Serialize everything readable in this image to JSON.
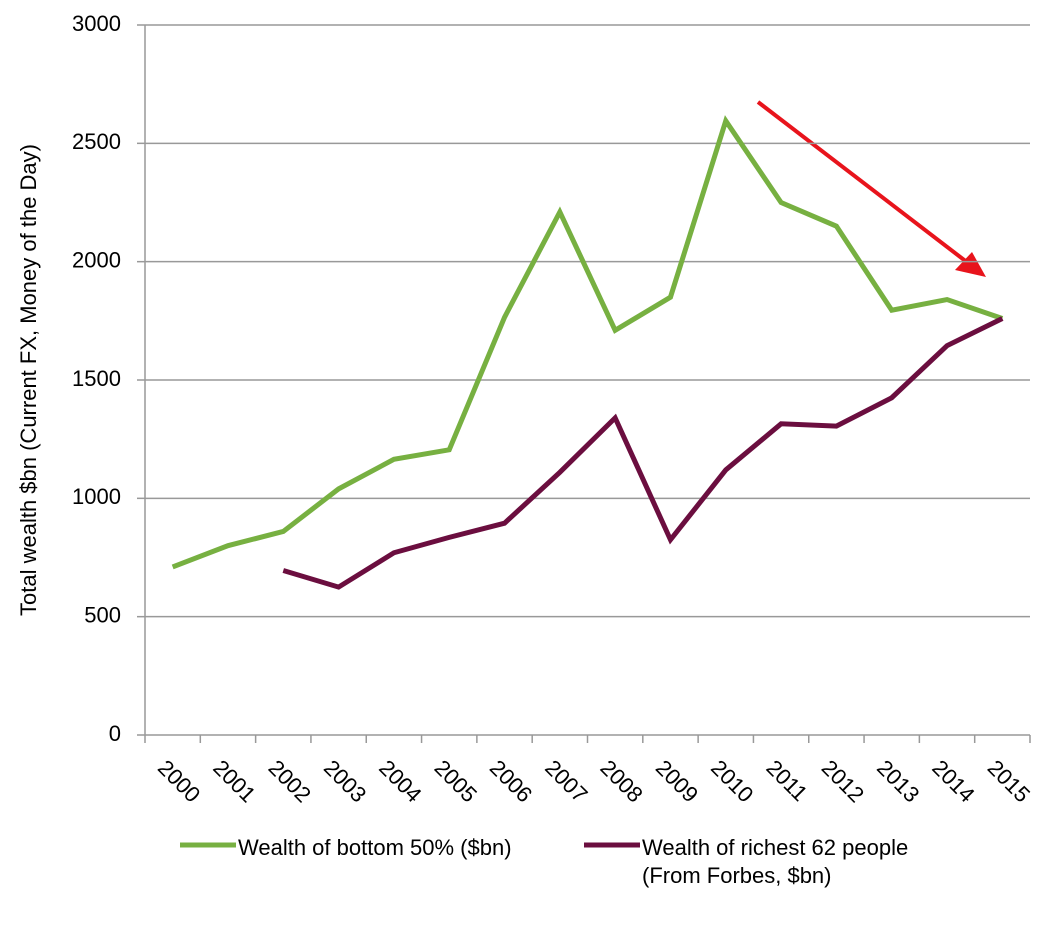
{
  "chart_data": {
    "type": "line",
    "y_label": "Total wealth $bn (Current FX, Money of the Day)",
    "categories": [
      "2000",
      "2001",
      "2002",
      "2003",
      "2004",
      "2005",
      "2006",
      "2007",
      "2008",
      "2009",
      "2010",
      "2011",
      "2012",
      "2013",
      "2014",
      "2015"
    ],
    "series": [
      {
        "name": "Wealth of bottom 50% ($bn)",
        "color": "#77b041",
        "values": [
          710,
          800,
          860,
          1040,
          1165,
          1205,
          1765,
          2210,
          1710,
          1850,
          2595,
          2250,
          2150,
          1795,
          1840,
          1760
        ]
      },
      {
        "name": "Wealth of richest 62 people (From Forbes, $bn)",
        "color": "#6b0e3f",
        "values": [
          null,
          null,
          695,
          625,
          770,
          835,
          895,
          1110,
          1340,
          825,
          1120,
          1315,
          1305,
          1425,
          1645,
          1760
        ]
      }
    ],
    "ylim": [
      0,
      3000
    ],
    "yticks": [
      0,
      500,
      1000,
      1500,
      2000,
      2500,
      3000
    ],
    "grid": true
  }
}
